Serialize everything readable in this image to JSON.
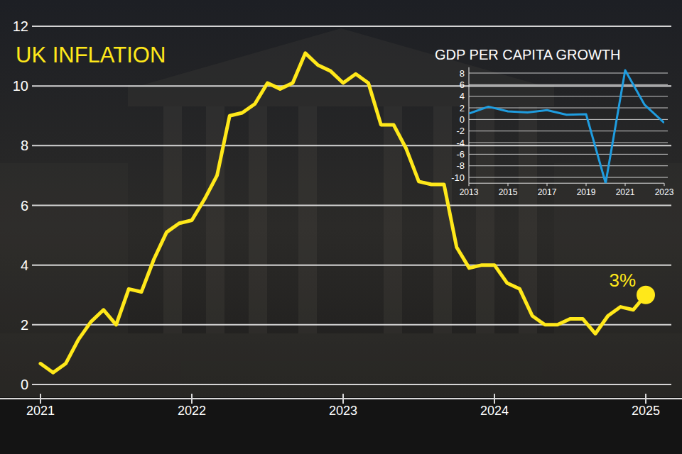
{
  "chart_data": [
    {
      "type": "line",
      "title": "UK INFLATION",
      "categories": [
        "2021",
        null,
        null,
        null,
        null,
        null,
        null,
        null,
        null,
        null,
        null,
        null,
        "2022",
        null,
        null,
        null,
        null,
        null,
        null,
        null,
        null,
        null,
        null,
        null,
        "2023",
        null,
        null,
        null,
        null,
        null,
        null,
        null,
        null,
        null,
        null,
        null,
        "2024",
        null,
        null,
        null,
        null,
        null,
        null,
        null,
        null,
        null,
        null,
        null,
        "2025"
      ],
      "values": [
        0.7,
        0.4,
        0.7,
        1.5,
        2.1,
        2.5,
        2.0,
        3.2,
        3.1,
        4.2,
        5.1,
        5.4,
        5.5,
        6.2,
        7.0,
        9.0,
        9.1,
        9.4,
        10.1,
        9.9,
        10.1,
        11.1,
        10.7,
        10.5,
        10.1,
        10.4,
        10.1,
        8.7,
        8.7,
        7.9,
        6.8,
        6.7,
        6.7,
        4.6,
        3.9,
        4.0,
        4.0,
        3.4,
        3.2,
        2.3,
        2.0,
        2.0,
        2.2,
        2.2,
        1.7,
        2.3,
        2.6,
        2.5,
        3.0
      ],
      "color": "#ffe81a",
      "ylim": [
        0,
        12
      ],
      "yticks": [
        0,
        2,
        4,
        6,
        8,
        10,
        12
      ],
      "grid": true,
      "marker": "end",
      "annotations": [
        "3%"
      ]
    },
    {
      "type": "line",
      "title": "GDP PER CAPITA GROWTH",
      "x": [
        2013,
        2014,
        2015,
        2016,
        2017,
        2018,
        2019,
        2020,
        2021,
        2022,
        2023
      ],
      "values": [
        1.0,
        2.2,
        1.4,
        1.2,
        1.6,
        0.8,
        0.9,
        -11.0,
        8.5,
        2.5,
        -0.6
      ],
      "color": "#1f9de0",
      "xlim": [
        2013,
        2023
      ],
      "xticks": [
        2013,
        2015,
        2017,
        2019,
        2021,
        2023
      ],
      "ylim": [
        -11,
        9
      ],
      "yticks": [
        -10,
        -8,
        -6,
        -4,
        -2,
        0,
        2,
        4,
        6,
        8
      ],
      "grid": true
    }
  ]
}
